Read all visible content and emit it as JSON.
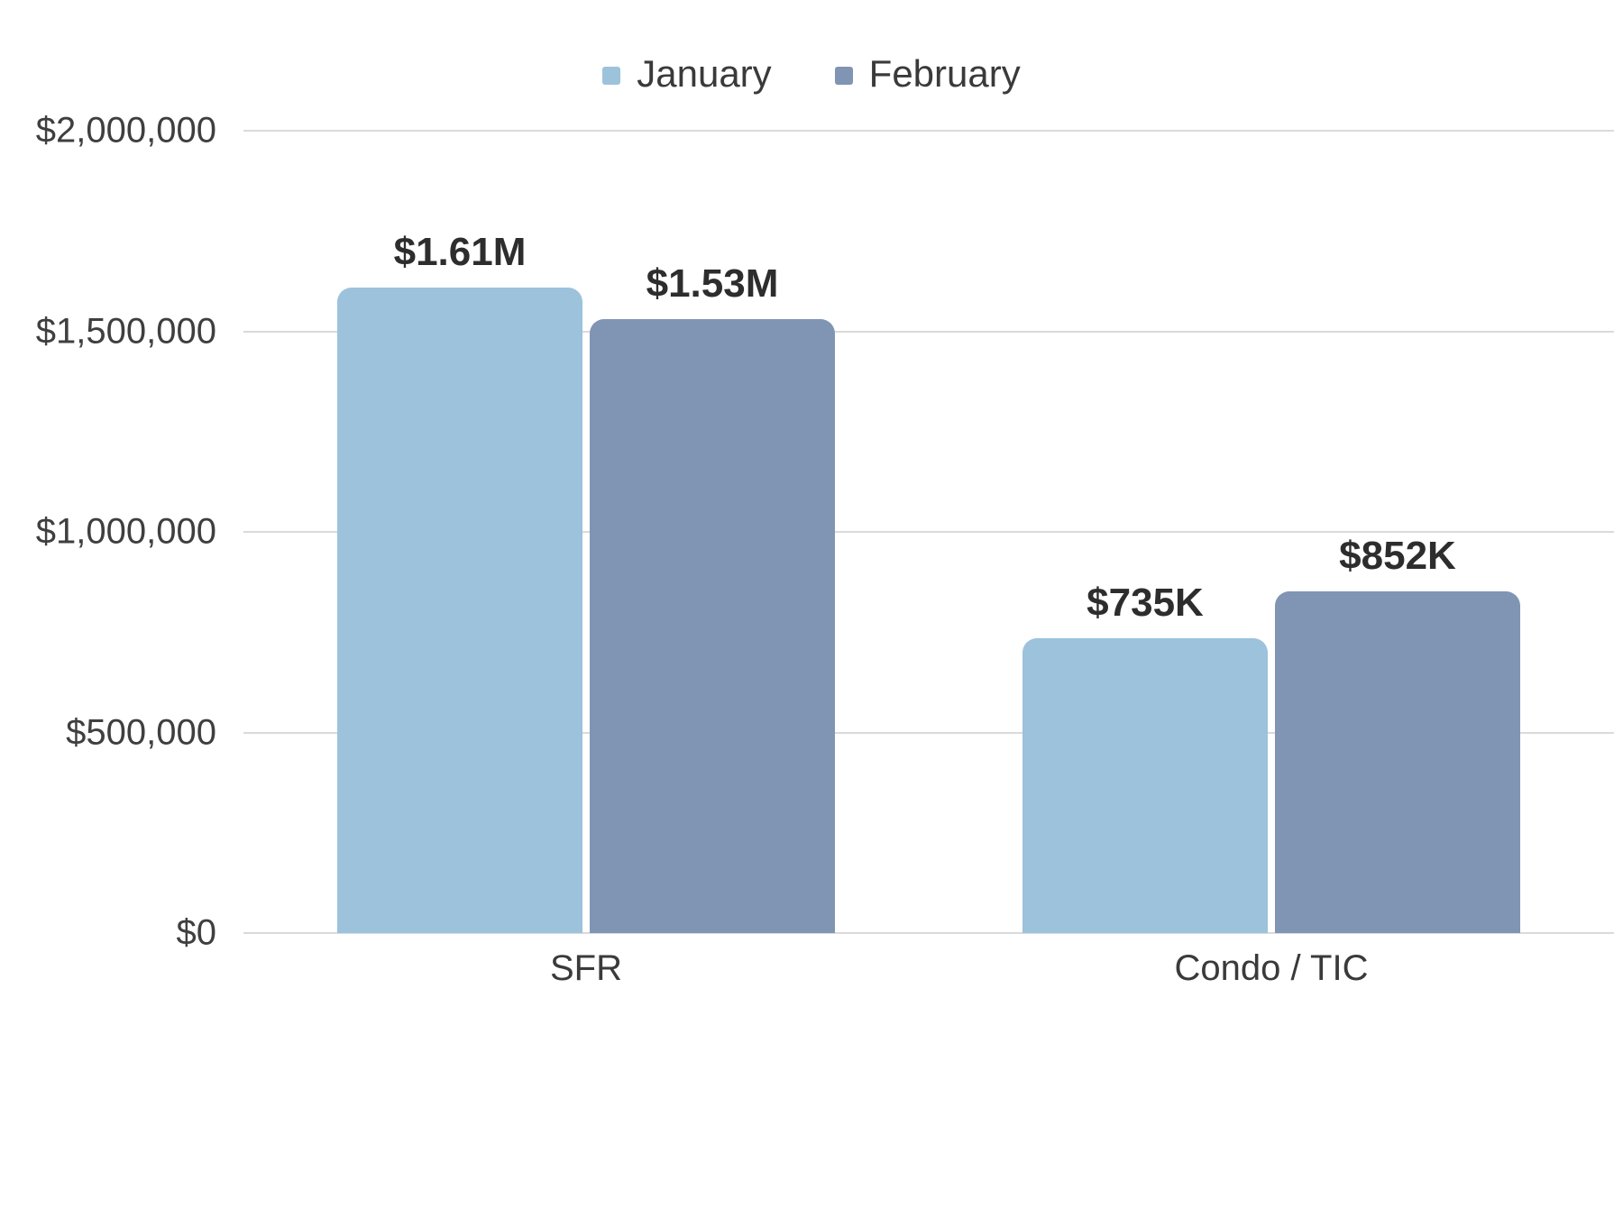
{
  "chart_data": {
    "type": "bar",
    "categories": [
      "SFR",
      "Condo / TIC"
    ],
    "series": [
      {
        "name": "January",
        "color": "#9cc2dc",
        "values": [
          1610000,
          735000
        ],
        "labels": [
          "$1.61M",
          "$735K"
        ]
      },
      {
        "name": "February",
        "color": "#8094b4",
        "values": [
          1530000,
          852000
        ],
        "labels": [
          "$1.53M",
          "$852K"
        ]
      }
    ],
    "ylim": [
      0,
      2000000
    ],
    "yticks": [
      {
        "value": 0,
        "label": "$0"
      },
      {
        "value": 500000,
        "label": "$500,000"
      },
      {
        "value": 1000000,
        "label": "$1,000,000"
      },
      {
        "value": 1500000,
        "label": "$1,500,000"
      },
      {
        "value": 2000000,
        "label": "$2,000,000"
      }
    ],
    "grid": true,
    "legend_position": "top",
    "title": "",
    "xlabel": "",
    "ylabel": ""
  },
  "colors": {
    "grid": "#dadada",
    "text": "#3a3a3a",
    "label_text": "#2d2d2d",
    "background": "#ffffff"
  }
}
